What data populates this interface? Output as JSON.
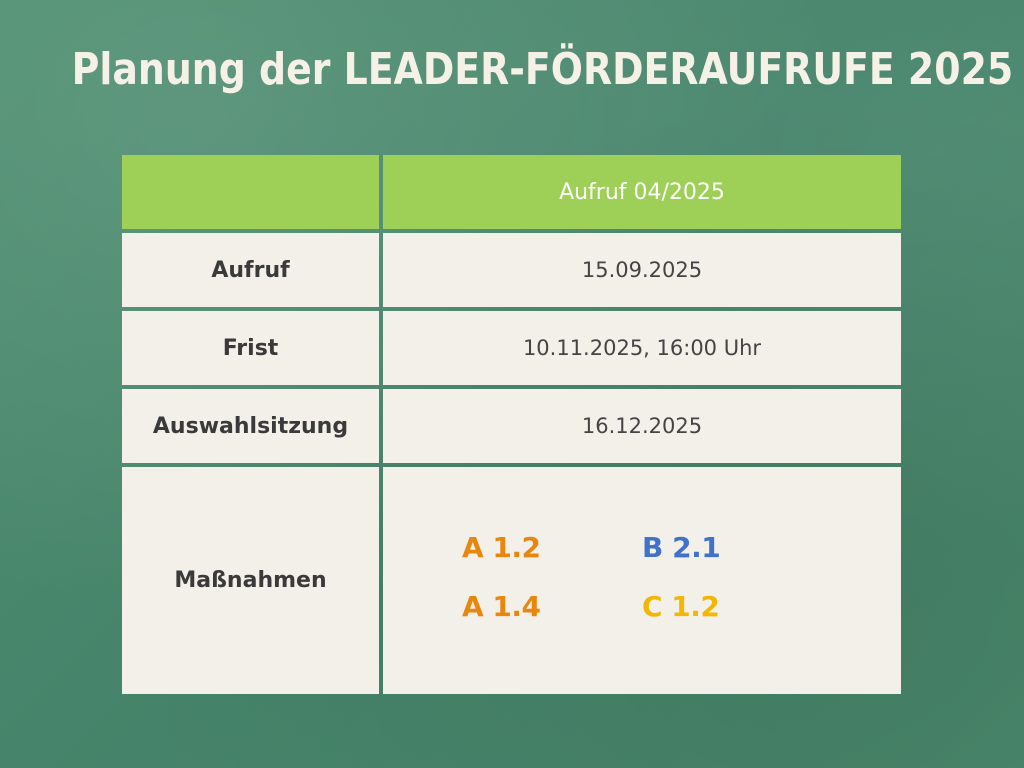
{
  "title": "Planung der LEADER-FÖRDERAUFRUFE 2025",
  "table": {
    "header": {
      "left": "",
      "right": "Aufruf 04/2025"
    },
    "rows": [
      {
        "label": "Aufruf",
        "value": "15.09.2025"
      },
      {
        "label": "Frist",
        "value": "10.11.2025, 16:00 Uhr"
      },
      {
        "label": "Auswahlsitzung",
        "value": "16.12.2025"
      }
    ],
    "measures": {
      "label": "Maßnahmen",
      "items": [
        {
          "code": "A 1.2",
          "color": "#e8870e"
        },
        {
          "code": "B 2.1",
          "color": "#3f72c8"
        },
        {
          "code": "A 1.4",
          "color": "#e8870e"
        },
        {
          "code": "C 1.2",
          "color": "#f2b705"
        }
      ]
    }
  },
  "colors": {
    "background": "#4a8a6c",
    "header": "#9ecf57",
    "cell": "#f3f0ea",
    "title": "#f6f1e6"
  }
}
